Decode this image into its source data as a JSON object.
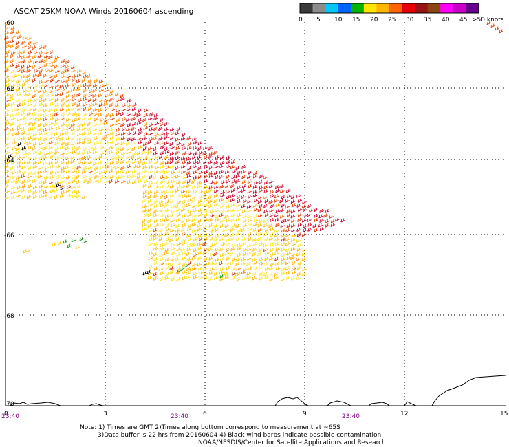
{
  "title": "ASCAT 25KM NOAA Winds 20160604 ascending",
  "colorbar": {
    "colors": [
      "#3a3a3a",
      "#8c8c8c",
      "#00c8ff",
      "#0064ff",
      "#00b400",
      "#ffe600",
      "#ffb400",
      "#ff6400",
      "#e60000",
      "#961414",
      "#8b4513",
      "#ff00ff",
      "#c800c8",
      "#64008c"
    ],
    "tick_labels": [
      "0",
      "5",
      "10",
      "15",
      "20",
      "25",
      "30",
      "35",
      "40",
      "45",
      ">50 knots"
    ]
  },
  "map": {
    "lat_labels": [
      "-60",
      "-62",
      "-64",
      "-66",
      "-68",
      "-70"
    ],
    "lon_labels": [
      "0",
      "3",
      "6",
      "9",
      "12",
      "15"
    ],
    "pass_times": [
      "23:40",
      "23:40",
      "23:40"
    ]
  },
  "notes": {
    "line1": "Note: 1) Times are GMT 2)Times along bottom correspond to measurement at ~65S",
    "line2": "3)Data buffer is 22 hrs from 20160604 4) Black wind barbs indicate possible contamination",
    "line3": "NOAA/NESDIS/Center for Satellite Applications and Research"
  }
}
